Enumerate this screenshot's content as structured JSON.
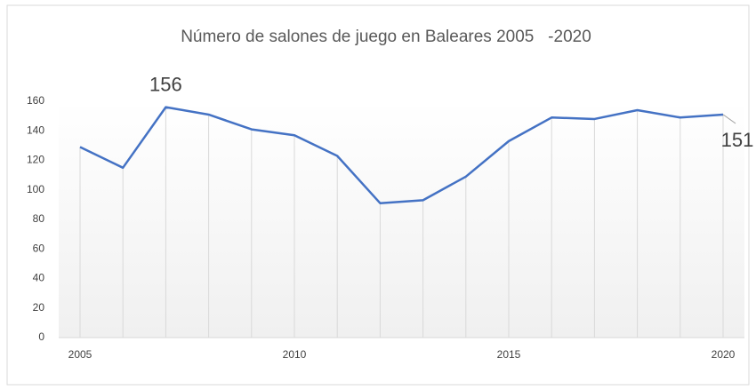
{
  "chart_data": {
    "type": "line",
    "title": "Número de salones de juego en Baleares 2005   -2020",
    "x": [
      2005,
      2006,
      2007,
      2008,
      2009,
      2010,
      2011,
      2012,
      2013,
      2014,
      2015,
      2016,
      2017,
      2018,
      2019,
      2020
    ],
    "series": [
      {
        "name": "Salones de juego",
        "color": "#4472c4",
        "values": [
          129,
          115,
          156,
          151,
          141,
          137,
          123,
          91,
          93,
          109,
          133,
          149,
          148,
          154,
          149,
          151
        ],
        "value_labels": [
          null,
          null,
          "156",
          null,
          null,
          null,
          null,
          null,
          null,
          null,
          null,
          null,
          null,
          null,
          null,
          "151"
        ]
      }
    ],
    "xlim": [
      2005,
      2020
    ],
    "xticks": [
      2005,
      2010,
      2015,
      2020
    ],
    "ylim": [
      0,
      160
    ],
    "yticks": [
      0,
      20,
      40,
      60,
      80,
      100,
      120,
      140,
      160
    ],
    "drop_lines": true
  }
}
